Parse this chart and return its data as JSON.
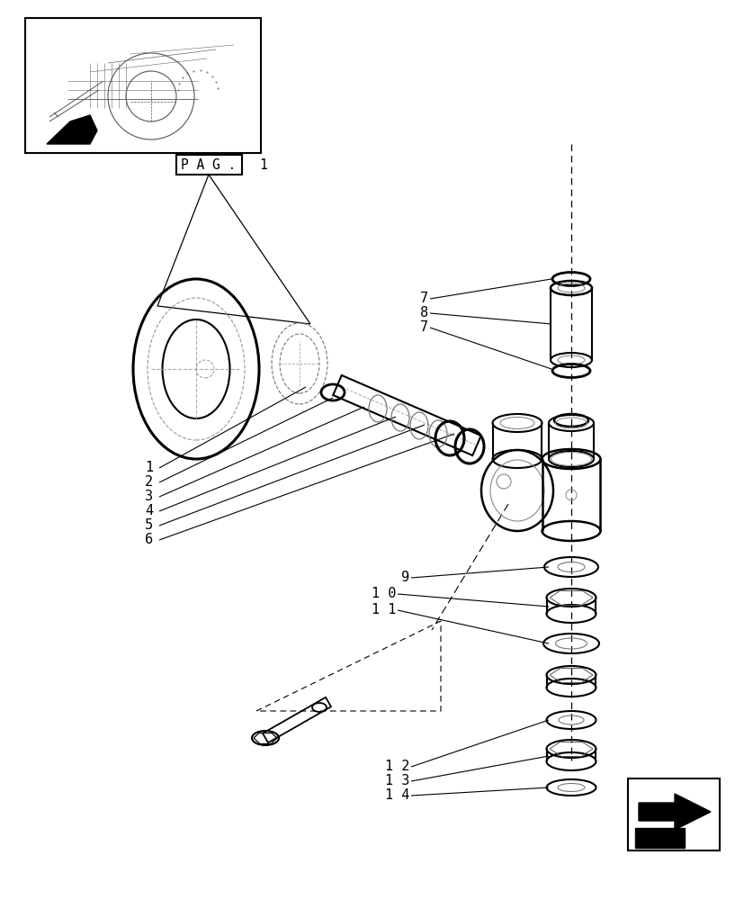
{
  "bg_color": "#ffffff",
  "line_color": "#000000",
  "light_line_color": "#aaaaaa",
  "fig_width": 8.28,
  "fig_height": 10.0,
  "pag_label": "P A G .",
  "pag_num": "1"
}
